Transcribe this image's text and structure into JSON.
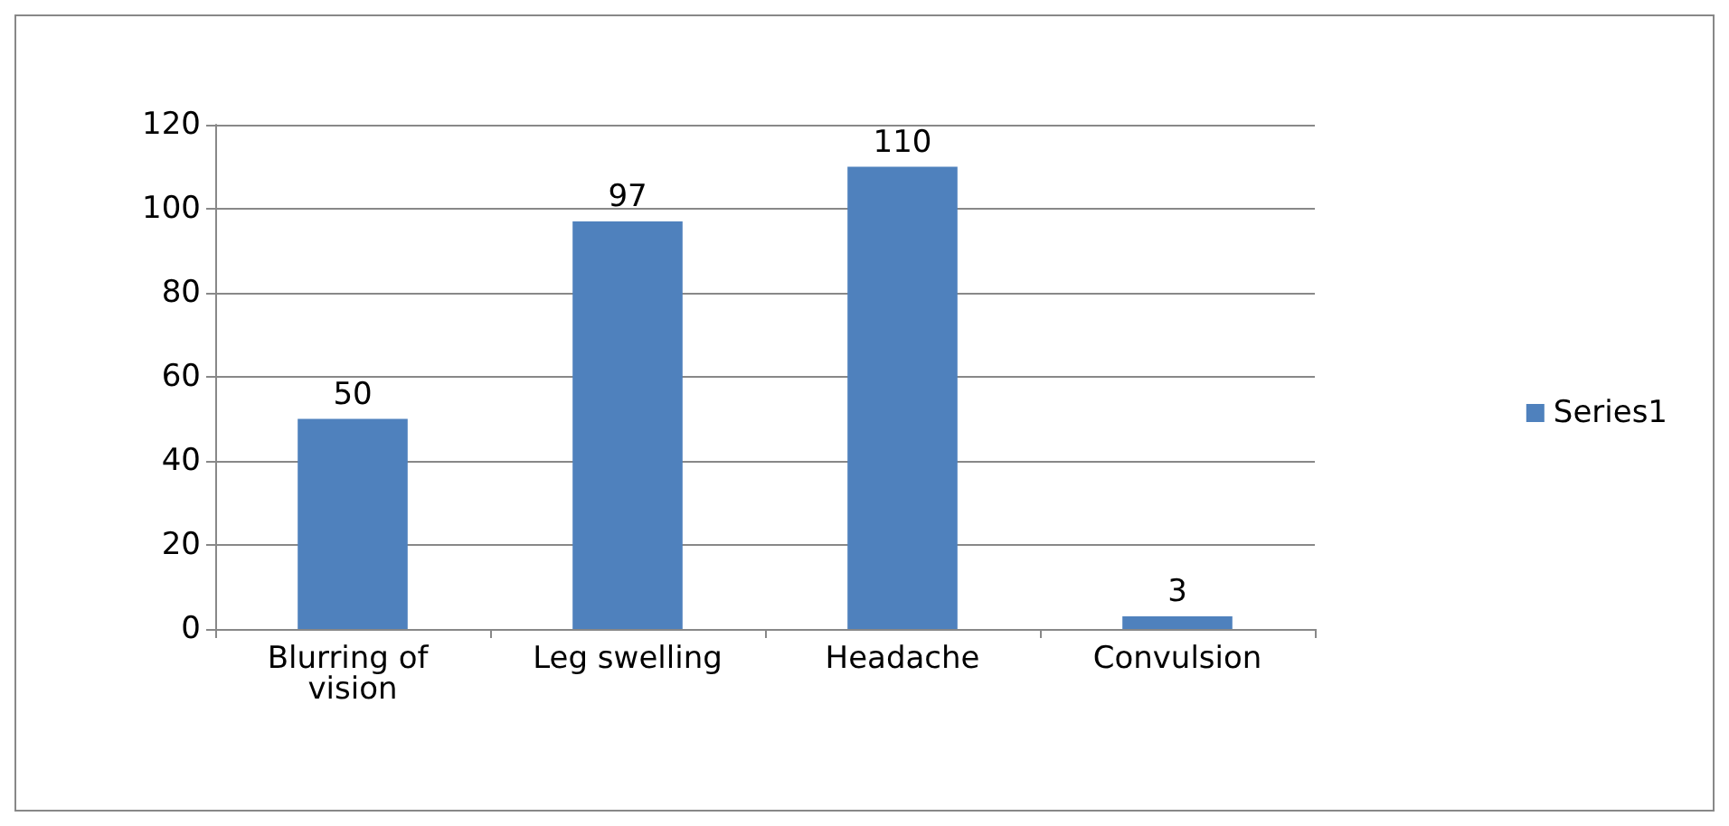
{
  "chart_data": {
    "type": "bar",
    "categories": [
      "Blurring of vision",
      "Leg swelling",
      "Headache",
      "Convulsion"
    ],
    "series": [
      {
        "name": "Series1",
        "color": "#4f81bd",
        "values": [
          50,
          97,
          110,
          3
        ]
      }
    ],
    "ylim": [
      0,
      120
    ],
    "yticks": [
      0,
      20,
      40,
      60,
      80,
      100,
      120
    ],
    "grid": "y",
    "legend": "right",
    "data_labels": true
  }
}
